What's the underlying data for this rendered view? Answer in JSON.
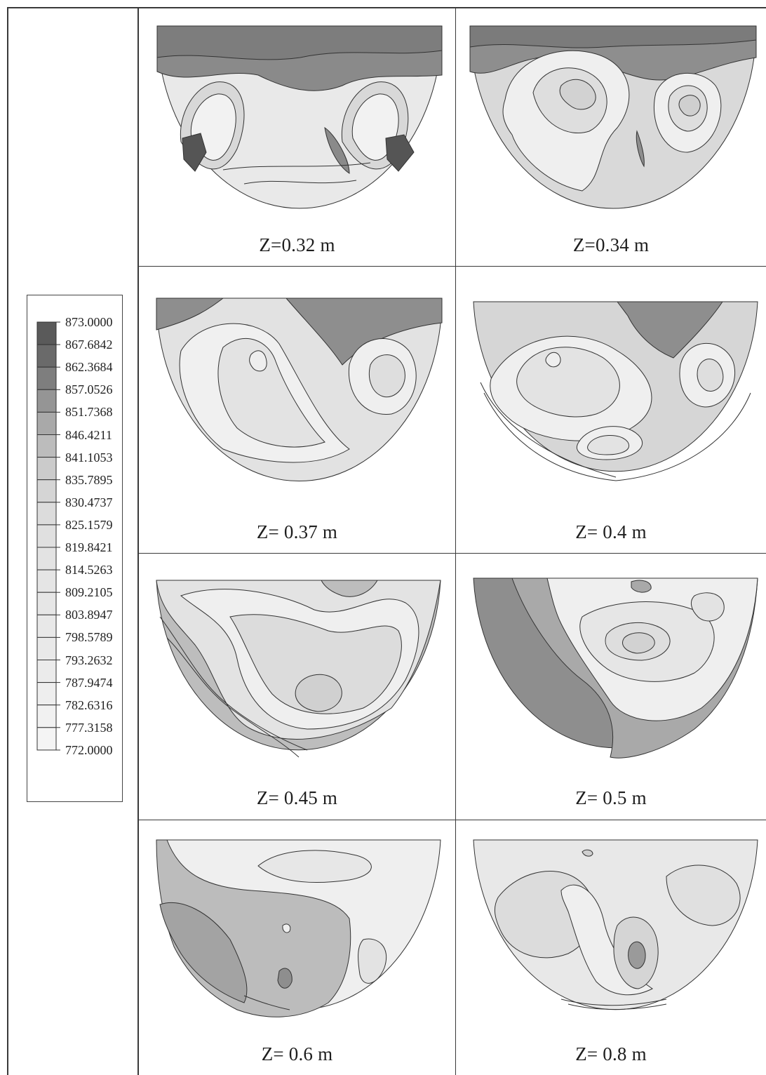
{
  "legend": {
    "levels": [
      "873.0000",
      "867.6842",
      "862.3684",
      "857.0526",
      "851.7368",
      "846.4211",
      "841.1053",
      "835.7895",
      "830.4737",
      "825.1579",
      "819.8421",
      "814.5263",
      "809.2105",
      "803.8947",
      "798.5789",
      "793.2632",
      "787.9474",
      "782.6316",
      "777.3158",
      "772.0000"
    ],
    "colors": [
      "#5a5a5a",
      "#6a6a6a",
      "#7e7e7e",
      "#959595",
      "#a9a9a9",
      "#bcbcbc",
      "#cbcbcb",
      "#d5d5d5",
      "#dcdcdc",
      "#e0e0e0",
      "#e3e3e3",
      "#e5e5e5",
      "#e6e6e6",
      "#e8e8e8",
      "#e9e9e9",
      "#ebebeb",
      "#eeeeee",
      "#f1f1f1",
      "#f4f4f4",
      "#f7f7f7"
    ]
  },
  "panels": [
    {
      "caption": "Z=0.32 m"
    },
    {
      "caption": "Z=0.34 m"
    },
    {
      "caption": "Z= 0.37 m"
    },
    {
      "caption": "Z= 0.4 m"
    },
    {
      "caption": "Z= 0.45 m"
    },
    {
      "caption": "Z= 0.5 m"
    },
    {
      "caption": "Z= 0.6 m"
    },
    {
      "caption": "Z= 0.8 m"
    }
  ]
}
